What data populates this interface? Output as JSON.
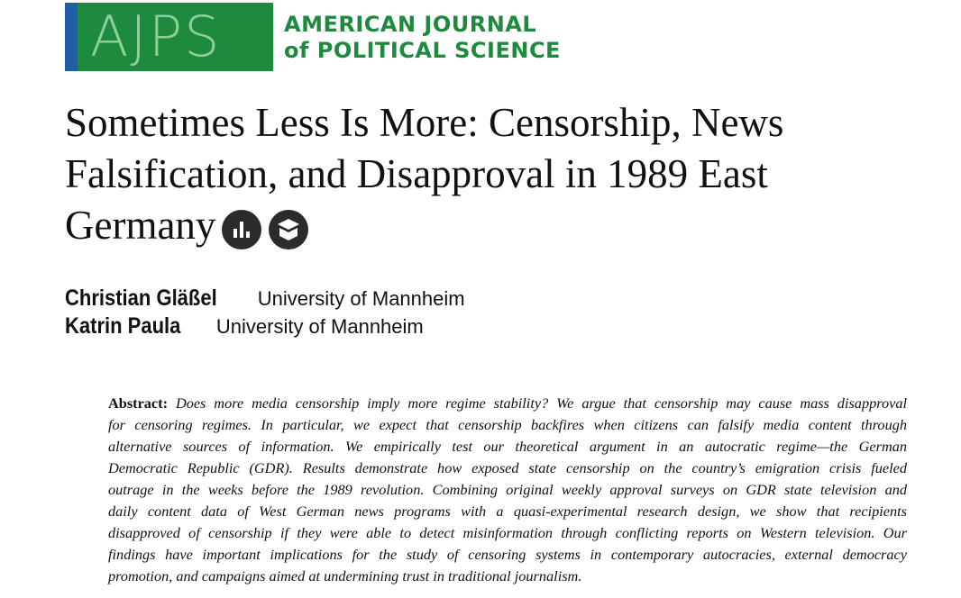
{
  "header": {
    "logo": "AJPS",
    "journal_lines": [
      "AMERICAN JOURNAL",
      "of POLITICAL SCIENCE"
    ]
  },
  "title_lines": [
    "Sometimes Less Is More: Censorship, News",
    "Falsification, and Disapproval in 1989 East",
    "Germany"
  ],
  "authors": [
    {
      "name": "Christian Gläßel",
      "affiliation": "University of Mannheim"
    },
    {
      "name": "Katrin Paula",
      "affiliation": "University of Mannheim"
    }
  ],
  "abstract": {
    "label": "Abstract:",
    "lines": [
      "Does more media censorship imply more regime stability? We argue that censorship may cause mass disapproval",
      "for censoring regimes. In particular, we expect that censorship backfires when citizens can falsify media content through",
      "alternative sources of information. We empirically test our theoretical argument in an autocratic regime—the German",
      "Democratic Republic (GDR). Results demonstrate how exposed state censorship on the country’s emigration crisis fueled",
      "outrage in the weeks before the 1989 revolution. Combining original weekly approval surveys on GDR state television and",
      "daily content data of West German news programs with a quasi-experimental research design, we show that recipients",
      "disapproved of censorship if they were able to detect misinformation through conflicting reports on Western television. Our",
      "findings have important implications for the study of censoring systems in contemporary autocracies, external democracy",
      "promotion, and campaigns aimed at undermining trust in traditional journalism."
    ]
  }
}
